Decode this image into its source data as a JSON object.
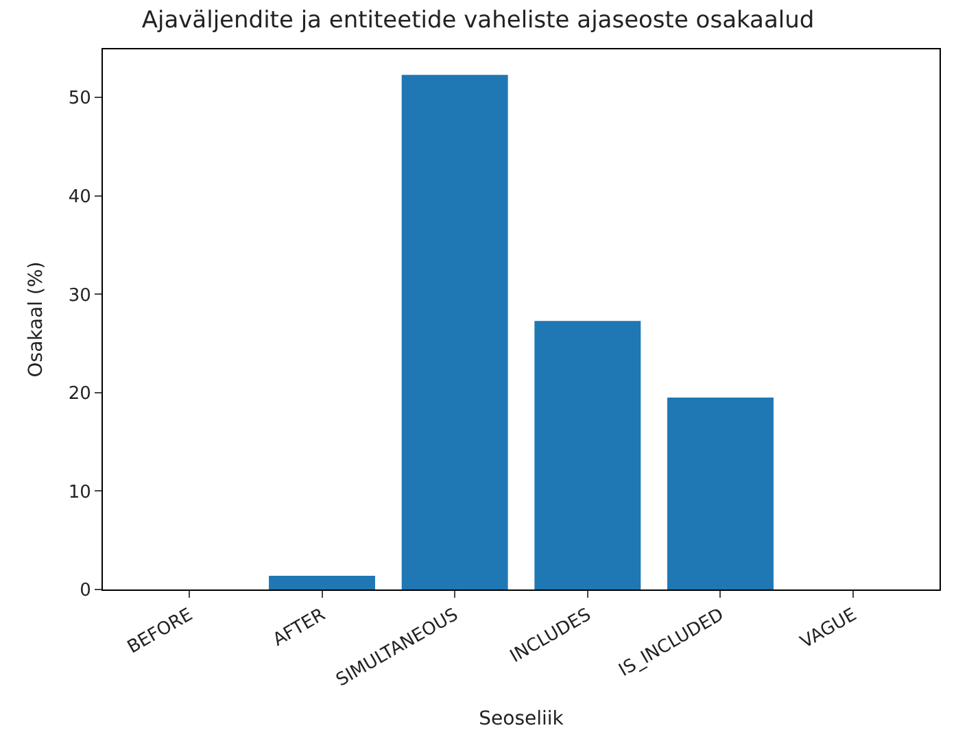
{
  "chart_data": {
    "type": "bar",
    "title": "Ajaväljendite ja entiteetide vaheliste ajaseoste osakaalud",
    "xlabel": "Seoseliik",
    "ylabel": "Osakaal (%)",
    "categories": [
      "BEFORE",
      "AFTER",
      "SIMULTANEOUS",
      "INCLUDES",
      "IS_INCLUDED",
      "VAGUE"
    ],
    "values": [
      0,
      1.4,
      52.3,
      27.3,
      19.5,
      0
    ],
    "color": "#1f77b4",
    "ylim": [
      0,
      54.9
    ],
    "yticks": [
      0,
      10,
      20,
      30,
      40,
      50
    ]
  }
}
